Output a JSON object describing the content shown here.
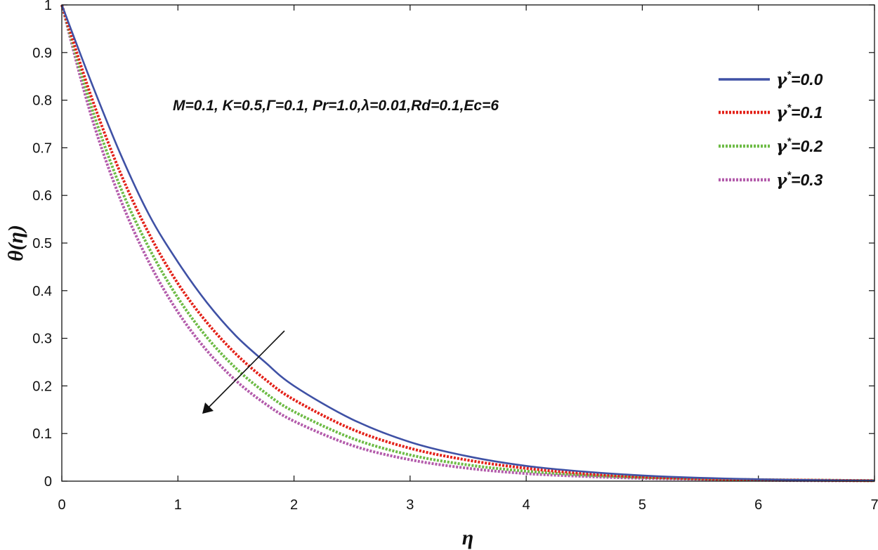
{
  "chart_data": {
    "type": "line",
    "xlabel": "η",
    "ylabel": "θ(η)",
    "xlim": [
      0,
      7
    ],
    "ylim": [
      0,
      1
    ],
    "x_ticks": [
      "0",
      "1",
      "2",
      "3",
      "4",
      "5",
      "6",
      "7"
    ],
    "y_ticks": [
      "0",
      "0.1",
      "0.2",
      "0.3",
      "0.4",
      "0.5",
      "0.6",
      "0.7",
      "0.8",
      "0.9",
      "1"
    ],
    "annotation": "M=0.1, K=0.5,Γ=0.1, Pr=1.0,λ=0.01,Rd=0.1,Ec=6",
    "legend_position": "top-right",
    "arrow_direction": "increasing γ* decreases θ",
    "x": [
      0,
      0.25,
      0.5,
      0.75,
      1,
      1.25,
      1.5,
      1.75,
      2,
      2.5,
      3,
      3.5,
      4,
      4.5,
      5,
      5.5,
      6,
      6.5,
      7
    ],
    "series": [
      {
        "name_base": "γ",
        "name_sup": "*",
        "name_value": "=0.0",
        "color": "#3f51a5",
        "style": "solid",
        "values": [
          1.0,
          0.84,
          0.69,
          0.56,
          0.46,
          0.375,
          0.305,
          0.25,
          0.2,
          0.13,
          0.082,
          0.052,
          0.032,
          0.02,
          0.012,
          0.007,
          0.004,
          0.002,
          0.001
        ]
      },
      {
        "name_base": "γ",
        "name_sup": "*",
        "name_value": "=0.1",
        "color": "#e32119",
        "style": "dotted",
        "values": [
          1.0,
          0.81,
          0.65,
          0.52,
          0.415,
          0.333,
          0.267,
          0.214,
          0.171,
          0.109,
          0.069,
          0.044,
          0.027,
          0.016,
          0.009,
          0.005,
          0.003,
          0.002,
          0.001
        ]
      },
      {
        "name_base": "γ",
        "name_sup": "*",
        "name_value": "=0.2",
        "color": "#6dbb45",
        "style": "dotted",
        "values": [
          1.0,
          0.79,
          0.62,
          0.49,
          0.385,
          0.302,
          0.237,
          0.186,
          0.146,
          0.09,
          0.055,
          0.034,
          0.021,
          0.013,
          0.008,
          0.005,
          0.003,
          0.002,
          0.001
        ]
      },
      {
        "name_base": "γ",
        "name_sup": "*",
        "name_value": "=0.3",
        "color": "#b35bab",
        "style": "dotted",
        "values": [
          1.0,
          0.77,
          0.595,
          0.46,
          0.355,
          0.274,
          0.211,
          0.163,
          0.126,
          0.075,
          0.045,
          0.027,
          0.016,
          0.01,
          0.006,
          0.004,
          0.002,
          0.001,
          0.001
        ]
      }
    ]
  }
}
